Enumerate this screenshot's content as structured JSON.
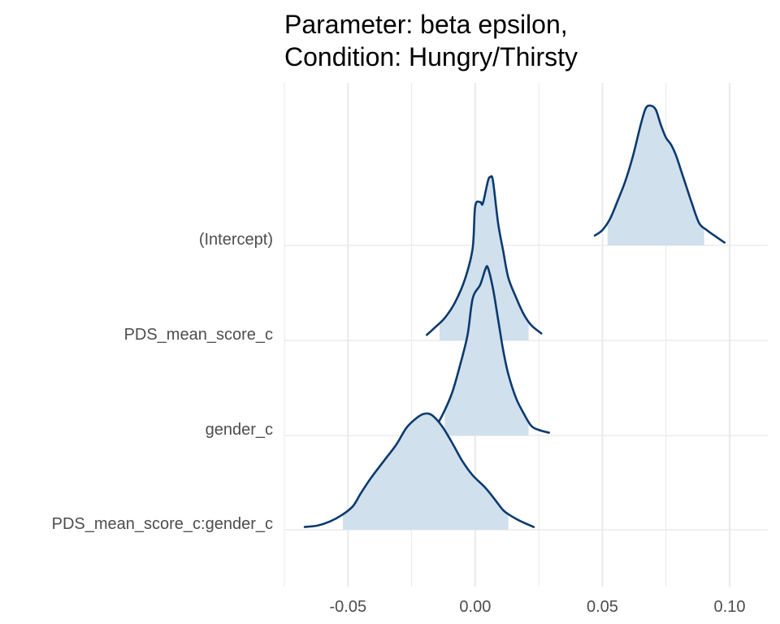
{
  "chart_data": {
    "type": "ridgeline",
    "title_lines": [
      "Parameter: beta epsilon,",
      "Condition: Hungry/Thirsty"
    ],
    "xlabel": "",
    "ylabel": "",
    "xlim": [
      -0.075,
      0.115
    ],
    "x_ticks": [
      -0.05,
      0.0,
      0.05,
      0.1
    ],
    "x_tick_labels": [
      "-0.05",
      "0.00",
      "0.05",
      "0.10"
    ],
    "x_minor_ticks": [
      -0.075,
      -0.025,
      0.025,
      0.075
    ],
    "grid": true,
    "colors": {
      "line": "#0b3a6e",
      "fill": "#d0e0ec",
      "grid": "#ebebeb"
    },
    "series": [
      {
        "label": "(Intercept)",
        "interval": [
          0.052,
          0.09
        ],
        "curve": [
          [
            0.047,
            0.07
          ],
          [
            0.05,
            0.11
          ],
          [
            0.053,
            0.19
          ],
          [
            0.056,
            0.32
          ],
          [
            0.059,
            0.46
          ],
          [
            0.062,
            0.64
          ],
          [
            0.065,
            0.86
          ],
          [
            0.067,
            0.98
          ],
          [
            0.069,
            1.0
          ],
          [
            0.071,
            0.97
          ],
          [
            0.073,
            0.86
          ],
          [
            0.075,
            0.77
          ],
          [
            0.077,
            0.72
          ],
          [
            0.079,
            0.64
          ],
          [
            0.081,
            0.53
          ],
          [
            0.083,
            0.42
          ],
          [
            0.085,
            0.31
          ],
          [
            0.088,
            0.16
          ],
          [
            0.091,
            0.11
          ],
          [
            0.094,
            0.07
          ],
          [
            0.098,
            0.02
          ]
        ]
      },
      {
        "label": "PDS_mean_score_c",
        "interval": [
          -0.014,
          0.021
        ],
        "curve": [
          [
            -0.019,
            0.04
          ],
          [
            -0.016,
            0.09
          ],
          [
            -0.012,
            0.16
          ],
          [
            -0.008,
            0.27
          ],
          [
            -0.004,
            0.44
          ],
          [
            -0.001,
            0.66
          ],
          [
            0.0,
            0.96
          ],
          [
            0.002,
            0.99
          ],
          [
            0.003,
            0.98
          ],
          [
            0.005,
            1.14
          ],
          [
            0.006,
            1.17
          ],
          [
            0.007,
            1.14
          ],
          [
            0.009,
            0.84
          ],
          [
            0.011,
            0.64
          ],
          [
            0.013,
            0.45
          ],
          [
            0.016,
            0.31
          ],
          [
            0.019,
            0.19
          ],
          [
            0.022,
            0.11
          ],
          [
            0.026,
            0.05
          ]
        ]
      },
      {
        "label": "gender_c",
        "interval": [
          -0.012,
          0.021
        ],
        "curve": [
          [
            -0.018,
            0.04
          ],
          [
            -0.015,
            0.08
          ],
          [
            -0.012,
            0.18
          ],
          [
            -0.009,
            0.31
          ],
          [
            -0.006,
            0.5
          ],
          [
            -0.003,
            0.72
          ],
          [
            -0.001,
            0.98
          ],
          [
            0.002,
            1.08
          ],
          [
            0.004,
            1.19
          ],
          [
            0.005,
            1.2
          ],
          [
            0.007,
            1.05
          ],
          [
            0.009,
            0.83
          ],
          [
            0.011,
            0.61
          ],
          [
            0.013,
            0.44
          ],
          [
            0.016,
            0.27
          ],
          [
            0.019,
            0.16
          ],
          [
            0.022,
            0.07
          ],
          [
            0.025,
            0.04
          ],
          [
            0.029,
            0.02
          ]
        ]
      },
      {
        "label": "PDS_mean_score_c:gender_c",
        "interval": [
          -0.052,
          0.013
        ],
        "curve": [
          [
            -0.067,
            0.02
          ],
          [
            -0.062,
            0.03
          ],
          [
            -0.057,
            0.06
          ],
          [
            -0.052,
            0.11
          ],
          [
            -0.048,
            0.17
          ],
          [
            -0.045,
            0.26
          ],
          [
            -0.041,
            0.37
          ],
          [
            -0.036,
            0.49
          ],
          [
            -0.031,
            0.61
          ],
          [
            -0.027,
            0.73
          ],
          [
            -0.023,
            0.8
          ],
          [
            -0.02,
            0.83
          ],
          [
            -0.017,
            0.82
          ],
          [
            -0.013,
            0.74
          ],
          [
            -0.009,
            0.62
          ],
          [
            -0.005,
            0.49
          ],
          [
            -0.001,
            0.39
          ],
          [
            0.004,
            0.3
          ],
          [
            0.008,
            0.21
          ],
          [
            0.011,
            0.14
          ],
          [
            0.014,
            0.1
          ],
          [
            0.018,
            0.06
          ],
          [
            0.023,
            0.02
          ]
        ]
      }
    ]
  }
}
